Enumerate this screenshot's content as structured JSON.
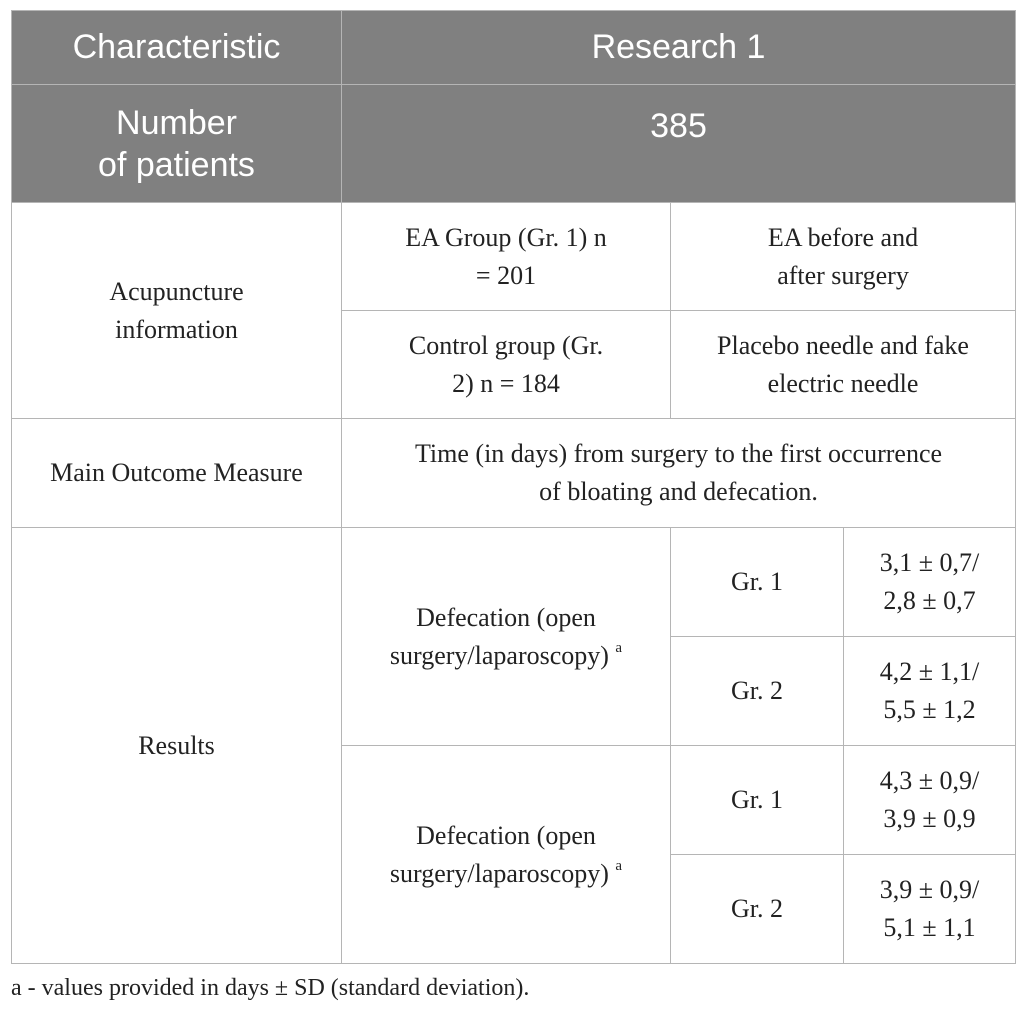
{
  "header": {
    "characteristic": "Characteristic",
    "research": "Research 1"
  },
  "patients": {
    "label_line1": "Number",
    "label_line2": "of patients",
    "value": "385"
  },
  "acupuncture": {
    "label_line1": "Acupuncture",
    "label_line2": "information",
    "group1_line1": "EA Group (Gr. 1) n",
    "group1_line2": "= 201",
    "group1_desc_line1": "EA before and",
    "group1_desc_line2": "after surgery",
    "group2_line1": "Control group (Gr.",
    "group2_line2": "2) n = 184",
    "group2_desc_line1": "Placebo needle and fake",
    "group2_desc_line2": "electric needle"
  },
  "outcome": {
    "label": "Main Outcome Measure",
    "value_line1": "Time (in days) from surgery to the first occurrence",
    "value_line2": "of bloating and defecation."
  },
  "results": {
    "label": "Results",
    "blocks": [
      {
        "measure_line1": "Defecation (open",
        "measure_line2": "surgery/laparoscopy)",
        "footnote_mark": "a",
        "rows": [
          {
            "group": "Gr. 1",
            "value_line1": "3,1 ± 0,7/",
            "value_line2": "2,8 ± 0,7"
          },
          {
            "group": "Gr. 2",
            "value_line1": "4,2 ± 1,1/",
            "value_line2": "5,5 ± 1,2"
          }
        ]
      },
      {
        "measure_line1": "Defecation (open",
        "measure_line2": "surgery/laparoscopy)",
        "footnote_mark": "a",
        "rows": [
          {
            "group": "Gr. 1",
            "value_line1": "4,3 ± 0,9/",
            "value_line2": "3,9 ± 0,9"
          },
          {
            "group": "Gr. 2",
            "value_line1": "3,9 ± 0,9/",
            "value_line2": "5,1 ± 1,1"
          }
        ]
      }
    ]
  },
  "footnote": "a - values provided in days ± SD (standard deviation)."
}
